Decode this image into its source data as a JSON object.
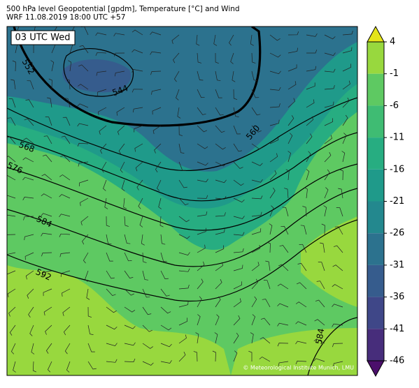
{
  "header": {
    "title": "500 hPa level Geopotential [gpdm], Temperature [°C] and Wind",
    "subtitle": "WRF 11.08.2019 18:00 UTC +57"
  },
  "map": {
    "time_label": "03 UTC Wed",
    "credit": "© Meteorological Institute Munich, LMU",
    "contour_labels": [
      552,
      544,
      560,
      568,
      576,
      584,
      592,
      584
    ]
  },
  "colorbar": {
    "lim": [
      -46,
      4
    ],
    "ticks": [
      4,
      -1,
      -6,
      -11,
      -16,
      -21,
      -26,
      -31,
      -36,
      -41,
      -46
    ],
    "colors": [
      "#e4e419",
      "#98d83e",
      "#5ec962",
      "#3fbc73",
      "#27ad81",
      "#1f9a8a",
      "#23888e",
      "#2c728e",
      "#365c8d",
      "#3f4788",
      "#472d7b",
      "#4b0f6b"
    ]
  }
}
